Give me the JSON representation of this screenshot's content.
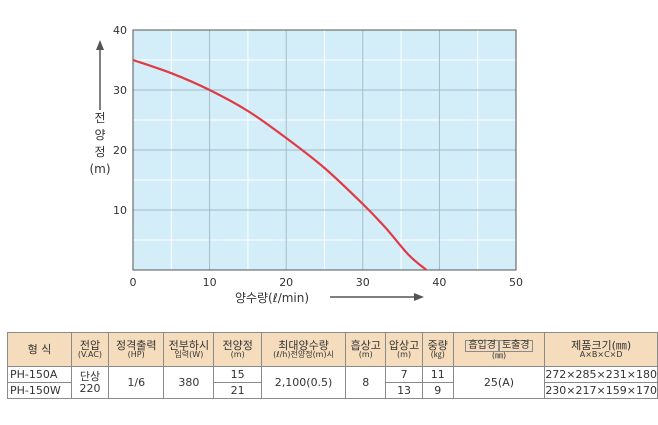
{
  "chart_data": {
    "type": "line",
    "xlabel": "양수량(ℓ/min)",
    "ylabel_chars": [
      "전",
      "양",
      "정",
      "(m)"
    ],
    "xlim": [
      0,
      50
    ],
    "ylim": [
      0,
      40
    ],
    "x_ticks": [
      0,
      10,
      20,
      30,
      40,
      50
    ],
    "y_ticks": [
      10,
      20,
      30,
      40
    ],
    "grid": true,
    "plot_background": "#d4eef9",
    "series": [
      {
        "color": "#e03a45",
        "x": [
          0,
          5,
          10,
          15,
          20,
          25,
          30,
          33,
          36,
          38.3
        ],
        "y": [
          35,
          32.8,
          30,
          26.5,
          22,
          17,
          11,
          7,
          2.5,
          0
        ]
      }
    ]
  },
  "table": {
    "headers": [
      {
        "main": "형  식",
        "unit": ""
      },
      {
        "main": "전압",
        "unit": "(V.AC)"
      },
      {
        "main": "정격출력",
        "unit": "(HP)"
      },
      {
        "main": "전부하시",
        "unit": "입력(W)"
      },
      {
        "main": "전양정",
        "unit": "(m)"
      },
      {
        "main": "최대양수량",
        "unit": "(ℓ/h)전양정(m)시"
      },
      {
        "main": "흡상고",
        "unit": "(m)"
      },
      {
        "main": "압상고",
        "unit": "(m)"
      },
      {
        "main": "중량",
        "unit": "(㎏)"
      },
      {
        "main_a": "흡입경",
        "main_b": "토출경",
        "unit": "(㎜)"
      },
      {
        "main": "제품크기(㎜)",
        "unit": "A×B×C×D"
      }
    ],
    "rows": [
      {
        "model": "PH-150A",
        "head": "15",
        "lift": "7",
        "weight": "11",
        "size": "272×285×231×180"
      },
      {
        "model": "PH-150W",
        "head": "21",
        "lift": "13",
        "weight": "9",
        "size": "230×217×159×170"
      }
    ],
    "shared": {
      "voltage": "단상220",
      "output": "1/6",
      "input": "380",
      "max_flow": "2,100(0.5)",
      "suction": "8",
      "diameter": "25(A)"
    }
  }
}
